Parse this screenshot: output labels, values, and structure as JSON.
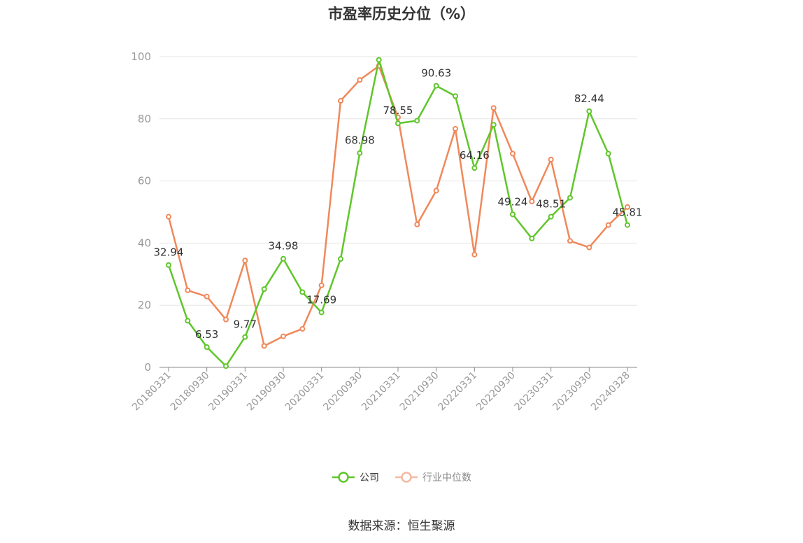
{
  "source_text": "数据来源：恒生聚源",
  "colors": {
    "company": "#5fc62a",
    "industry": "#f0885a",
    "industry_legend": "#f5b9a0",
    "grid": "#e6e6e6",
    "axis": "#888888",
    "tick_text": "#999999"
  },
  "chart_data": {
    "type": "line",
    "title": "市盈率历史分位（%）",
    "xlabel": "",
    "ylabel": "",
    "ylim": [
      0,
      100
    ],
    "yticks": [
      0,
      20,
      40,
      60,
      80,
      100
    ],
    "grid": true,
    "legend_position": "bottom",
    "x": [
      "20180331",
      "20180630",
      "20180930",
      "20181231",
      "20190331",
      "20190630",
      "20190930",
      "20191231",
      "20200331",
      "20200630",
      "20200930",
      "20201231",
      "20210331",
      "20210630",
      "20210930",
      "20211231",
      "20220331",
      "20220630",
      "20220930",
      "20221231",
      "20230331",
      "20230630",
      "20230930",
      "20231231",
      "20240328"
    ],
    "x_tick_labels": [
      "20180331",
      "20180930",
      "20190331",
      "20190930",
      "20200331",
      "20200930",
      "20210331",
      "20210930",
      "20220331",
      "20220930",
      "20230331",
      "20230930",
      "20240328"
    ],
    "series": [
      {
        "name": "公司",
        "values": [
          32.94,
          15.0,
          6.53,
          0.4,
          9.77,
          25.2,
          34.98,
          24.2,
          17.69,
          34.9,
          68.98,
          99.0,
          78.55,
          79.4,
          90.63,
          87.3,
          64.16,
          78.1,
          49.24,
          41.5,
          48.51,
          54.6,
          82.44,
          68.8,
          45.81
        ],
        "labels": [
          "32.94",
          "",
          "6.53",
          "",
          "9.77",
          "",
          "34.98",
          "",
          "17.69",
          "",
          "68.98",
          "",
          "78.55",
          "",
          "90.63",
          "",
          "64.16",
          "",
          "49.24",
          "",
          "48.51",
          "",
          "82.44",
          "",
          "45.81"
        ]
      },
      {
        "name": "行业中位数",
        "values": [
          48.5,
          24.8,
          22.8,
          15.4,
          34.4,
          6.9,
          10.0,
          12.4,
          26.4,
          85.8,
          92.5,
          97.0,
          80.5,
          46.0,
          56.9,
          76.8,
          36.3,
          83.5,
          68.8,
          53.4,
          66.9,
          40.7,
          38.6,
          45.8,
          51.6
        ]
      }
    ]
  }
}
